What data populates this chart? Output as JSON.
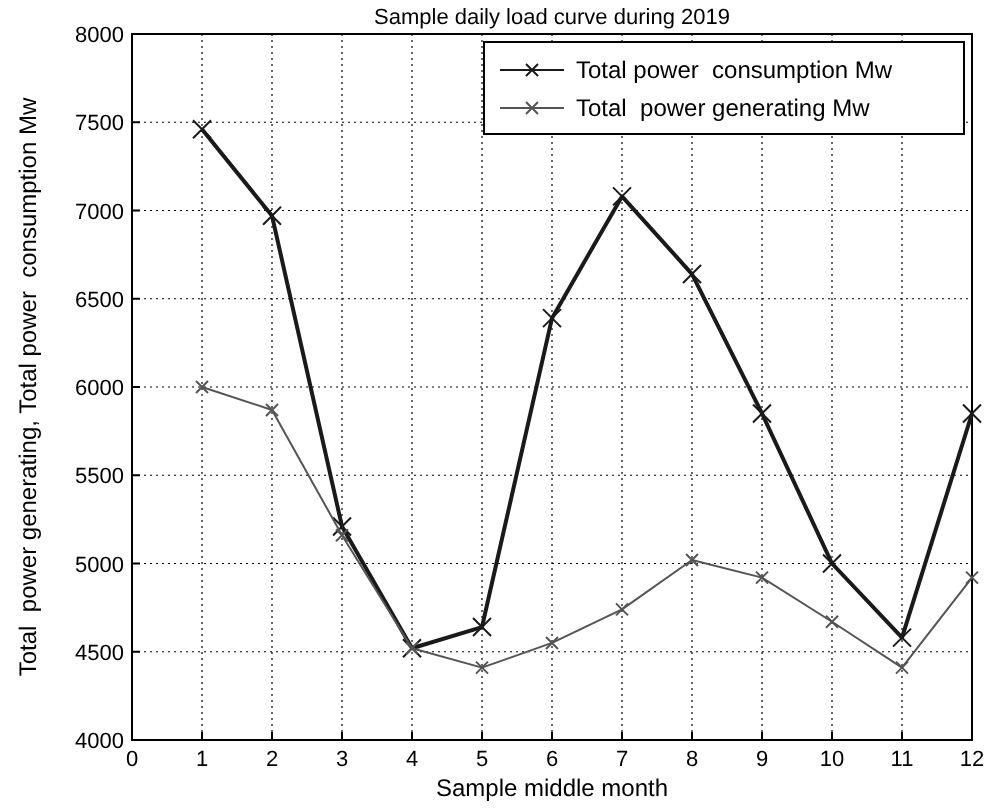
{
  "chart_data": {
    "type": "line",
    "title": "Sample daily load curve during 2019",
    "xlabel": "Sample middle month",
    "ylabel": "Total  power generating, Total power  consumption Mw",
    "x": [
      1,
      2,
      3,
      4,
      5,
      6,
      7,
      8,
      9,
      10,
      11,
      12
    ],
    "series": [
      {
        "name": "Total power  consumption Mw",
        "color": "#1a1a1a",
        "values": [
          7460,
          6970,
          5210,
          4520,
          4640,
          6390,
          7080,
          6640,
          5850,
          5000,
          4580,
          5850
        ]
      },
      {
        "name": "Total  power generating Mw",
        "color": "#555555",
        "values": [
          6000,
          5870,
          5160,
          4520,
          4410,
          4550,
          4740,
          5020,
          4920,
          4670,
          4410,
          4920
        ]
      }
    ],
    "xlim": [
      0,
      12
    ],
    "xticks": [
      0,
      1,
      2,
      3,
      4,
      5,
      6,
      7,
      8,
      9,
      10,
      11,
      12
    ],
    "ylim": [
      4000,
      8000
    ],
    "yticks": [
      4000,
      4500,
      5000,
      5500,
      6000,
      6500,
      7000,
      7500,
      8000
    ],
    "grid": true,
    "legend": "top right",
    "marker": "cross",
    "line_style": "solid"
  }
}
